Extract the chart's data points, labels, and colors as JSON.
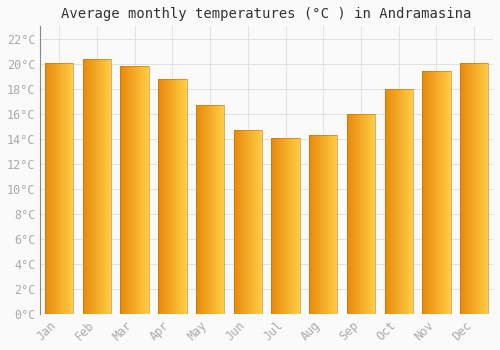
{
  "title": "Average monthly temperatures (°C ) in Andramasina",
  "months": [
    "Jan",
    "Feb",
    "Mar",
    "Apr",
    "May",
    "Jun",
    "Jul",
    "Aug",
    "Sep",
    "Oct",
    "Nov",
    "Dec"
  ],
  "values": [
    20.1,
    20.4,
    19.8,
    18.8,
    16.7,
    14.7,
    14.1,
    14.3,
    16.0,
    18.0,
    19.4,
    20.1
  ],
  "bar_color_left": "#E8890A",
  "bar_color_right": "#FFCC44",
  "background_color": "#FAFAFA",
  "grid_color": "#DDDDDD",
  "ylim": [
    0,
    23
  ],
  "yticks": [
    0,
    2,
    4,
    6,
    8,
    10,
    12,
    14,
    16,
    18,
    20,
    22
  ],
  "title_fontsize": 10,
  "tick_fontsize": 8.5,
  "tick_color": "#AAAAAA",
  "font_family": "monospace",
  "bar_width": 0.75
}
